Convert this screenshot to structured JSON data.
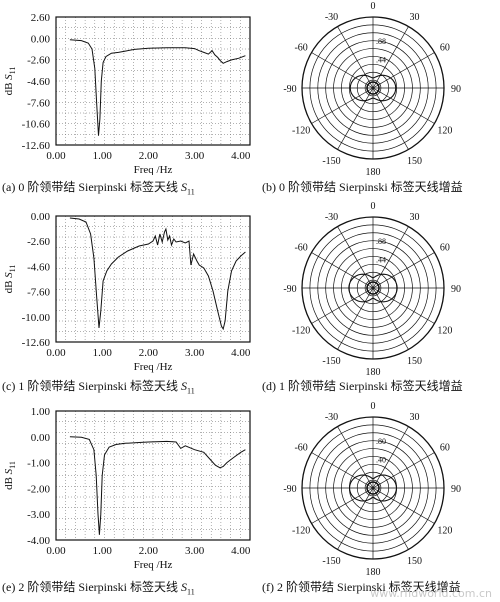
{
  "chart_data": [
    {
      "type": "line",
      "xlabel": "Freq /Hz",
      "ylabel": "dB",
      "ylabel_sym": "S",
      "ylabel_sub": "11",
      "xlim": [
        0,
        4.2
      ],
      "ylim": [
        -12.6,
        2.6
      ],
      "xticks": [
        "0.00",
        "1.00",
        "2.00",
        "3.00",
        "4.00"
      ],
      "yticks": [
        "2.60",
        "0.00",
        "-2.60",
        "-4.60",
        "-7.60",
        "-10.60",
        "-12.60"
      ],
      "x": [
        0.3,
        0.55,
        0.7,
        0.78,
        0.84,
        0.88,
        0.92,
        0.95,
        0.98,
        1.02,
        1.08,
        1.2,
        1.35,
        1.5,
        1.7,
        2.0,
        2.4,
        2.8,
        3.0,
        3.1,
        3.2,
        3.3,
        3.38,
        3.44,
        3.5,
        3.56,
        3.62,
        3.7,
        3.8,
        3.95,
        4.1
      ],
      "values": [
        -0.1,
        -0.2,
        -0.5,
        -1.2,
        -3.5,
        -7.5,
        -11.5,
        -9.5,
        -5.0,
        -2.8,
        -2.1,
        -1.7,
        -1.6,
        -1.45,
        -1.25,
        -1.1,
        -1.05,
        -1.05,
        -1.15,
        -1.4,
        -1.6,
        -1.8,
        -1.4,
        -1.9,
        -2.2,
        -2.6,
        -2.9,
        -2.7,
        -2.5,
        -2.3,
        -2.0
      ],
      "caption_prefix": "(a) 0 阶领带结 Sierpinski 标签天线 ",
      "caption_sym": "S",
      "caption_sub": "11"
    },
    {
      "type": "line",
      "xlabel": "Freq /Hz",
      "ylabel": "dB",
      "ylabel_sym": "S",
      "ylabel_sub": "11",
      "xlim": [
        0,
        4.2
      ],
      "ylim": [
        -12.6,
        0
      ],
      "xticks": [
        "0.00",
        "1.00",
        "2.00",
        "3.00",
        "4.00"
      ],
      "yticks": [
        "0.00",
        "-2.60",
        "-4.60",
        "-7.60",
        "-10.00",
        "-12.60"
      ],
      "x": [
        0.3,
        0.5,
        0.65,
        0.75,
        0.82,
        0.88,
        0.93,
        0.97,
        1.02,
        1.1,
        1.2,
        1.35,
        1.55,
        1.8,
        2.0,
        2.1,
        2.15,
        2.2,
        2.25,
        2.3,
        2.35,
        2.38,
        2.42,
        2.46,
        2.5,
        2.55,
        2.6,
        2.7,
        2.8,
        2.88,
        2.92,
        2.98,
        3.05,
        3.1,
        3.2,
        3.3,
        3.4,
        3.5,
        3.58,
        3.62,
        3.66,
        3.72,
        3.8,
        3.9,
        4.0,
        4.1
      ],
      "values": [
        -0.2,
        -0.3,
        -0.6,
        -1.8,
        -4.2,
        -8.0,
        -11.2,
        -9.5,
        -6.5,
        -5.5,
        -4.8,
        -4.1,
        -3.5,
        -3.0,
        -2.8,
        -2.5,
        -2.0,
        -2.9,
        -1.8,
        -2.6,
        -1.6,
        -1.3,
        -2.4,
        -2.0,
        -2.9,
        -2.3,
        -2.6,
        -2.5,
        -2.7,
        -2.5,
        -4.9,
        -3.8,
        -4.5,
        -4.9,
        -5.2,
        -6.0,
        -7.5,
        -9.5,
        -11.0,
        -11.3,
        -10.5,
        -7.5,
        -5.5,
        -4.5,
        -4.0,
        -3.6
      ],
      "caption_prefix": "(c) 1 阶领带结 Sierpinski 标签天线 ",
      "caption_sym": "S",
      "caption_sub": "11"
    },
    {
      "type": "line",
      "xlabel": "Freq /Hz",
      "ylabel": "dB",
      "ylabel_sym": "S",
      "ylabel_sub": "11",
      "xlim": [
        0,
        4.2
      ],
      "ylim": [
        -4.0,
        1.0
      ],
      "xticks": [
        "0.00",
        "1.00",
        "2.00",
        "3.00",
        "4.00"
      ],
      "yticks": [
        "1.00",
        "0.00",
        "-1.00",
        "-2.00",
        "-3.00",
        "-4.00"
      ],
      "x": [
        0.3,
        0.55,
        0.72,
        0.82,
        0.87,
        0.91,
        0.94,
        0.97,
        1.0,
        1.05,
        1.15,
        1.3,
        1.5,
        1.8,
        2.0,
        2.4,
        2.6,
        2.7,
        2.8,
        3.0,
        3.2,
        3.35,
        3.45,
        3.55,
        3.62,
        3.7,
        3.85,
        4.0,
        4.1
      ],
      "values": [
        0.0,
        -0.02,
        -0.1,
        -0.5,
        -1.5,
        -3.0,
        -3.8,
        -3.0,
        -1.5,
        -0.7,
        -0.4,
        -0.3,
        -0.25,
        -0.22,
        -0.2,
        -0.18,
        -0.2,
        -0.45,
        -0.35,
        -0.5,
        -0.6,
        -0.9,
        -1.1,
        -1.2,
        -1.15,
        -1.0,
        -0.8,
        -0.6,
        -0.5
      ],
      "caption_prefix": "(e) 2 阶领带结 Sierpinski 标签天线 ",
      "caption_sym": "S",
      "caption_sub": "11"
    },
    {
      "type": "polar",
      "angle_labels": [
        "0",
        "30",
        "60",
        "90",
        "120",
        "150",
        "180",
        "-150",
        "-120",
        "-90",
        "-60",
        "-30"
      ],
      "rings": 9,
      "radial_labels": [
        ".88",
        ".44"
      ],
      "caption": "(b) 0 阶领带结 Sierpinski 标签天线增益"
    },
    {
      "type": "polar",
      "angle_labels": [
        "0",
        "30",
        "60",
        "90",
        "120",
        "150",
        "180",
        "-150",
        "-120",
        "-90",
        "-60",
        "-30"
      ],
      "rings": 9,
      "radial_labels": [
        ".88",
        ".44"
      ],
      "caption": "(d) 1 阶领带结 Sierpinski 标签天线增益"
    },
    {
      "type": "polar",
      "angle_labels": [
        "0",
        "30",
        "60",
        "90",
        "120",
        "150",
        "180",
        "-150",
        "-120",
        "-90",
        "-60",
        "-30"
      ],
      "rings": 9,
      "radial_labels": [
        ".80",
        ".40"
      ],
      "caption": "(f) 2 阶领带结 Sierpinski 标签天线增益"
    }
  ],
  "watermark": "www.rfidworld.com.cn"
}
